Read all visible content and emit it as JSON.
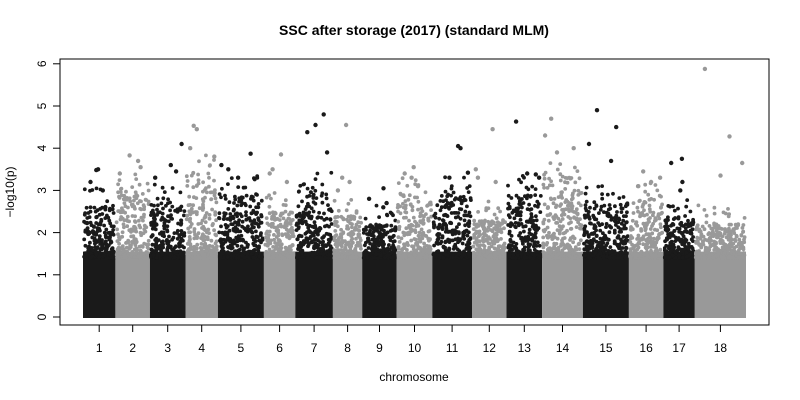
{
  "chart_data": {
    "type": "scatter",
    "subtype": "manhattan",
    "title": "SSC after storage (2017) (standard MLM)",
    "xlabel": "chromosome",
    "ylabel": "−log10(p)",
    "ylim": [
      0,
      6.2
    ],
    "yticks": [
      0,
      1,
      2,
      3,
      4,
      5,
      6
    ],
    "grid": false,
    "legend": "none",
    "colors": {
      "odd": "#1a1a1a",
      "even": "#999999"
    },
    "categories": [
      "1",
      "2",
      "3",
      "4",
      "5",
      "6",
      "7",
      "8",
      "9",
      "10",
      "11",
      "12",
      "13",
      "14",
      "15",
      "16",
      "17",
      "18"
    ],
    "bulk_ceiling": [
      2.6,
      3.0,
      2.7,
      3.4,
      2.9,
      2.5,
      3.0,
      2.4,
      2.2,
      2.9,
      2.9,
      2.3,
      2.9,
      3.3,
      2.7,
      2.8,
      2.4,
      2.2
    ],
    "top_hits": [
      [
        3.5,
        3.48,
        3.2,
        3.0
      ],
      [
        3.83,
        3.7,
        3.55,
        3.4
      ],
      [
        4.1,
        3.6,
        3.45,
        3.3
      ],
      [
        4.53,
        4.45,
        4.0,
        3.8
      ],
      [
        3.87,
        3.6,
        3.5,
        3.3
      ],
      [
        3.85,
        3.5,
        3.4,
        3.2
      ],
      [
        4.8,
        4.55,
        4.38,
        3.9
      ],
      [
        4.55,
        3.3,
        3.2,
        3.0
      ],
      [
        3.05,
        2.8,
        2.7,
        2.6
      ],
      [
        3.55,
        3.4,
        3.3,
        3.1
      ],
      [
        4.05,
        4.0,
        3.42,
        3.3
      ],
      [
        4.45,
        3.5,
        3.3,
        3.2
      ],
      [
        4.63,
        3.4,
        3.38,
        3.3
      ],
      [
        4.7,
        4.3,
        4.0,
        3.9
      ],
      [
        4.9,
        4.5,
        4.1,
        3.7
      ],
      [
        3.45,
        3.3,
        3.2,
        3.1
      ],
      [
        3.75,
        3.65,
        3.2,
        3.0
      ],
      [
        5.88,
        4.28,
        3.65,
        3.35
      ]
    ]
  }
}
